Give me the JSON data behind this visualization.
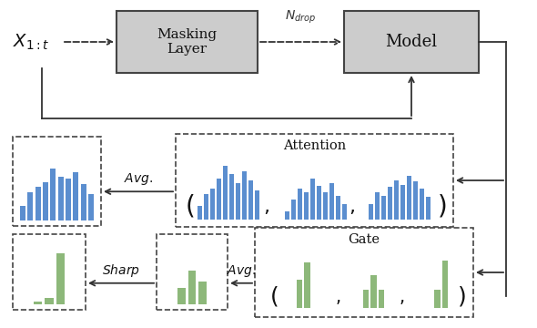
{
  "fig_width": 5.9,
  "fig_height": 3.6,
  "dpi": 100,
  "bg_color": "#ffffff",
  "box_fc": "#cccccc",
  "box_ec": "#444444",
  "blue_bar_color": "#5b8ecf",
  "green_bar_color": "#8db87a",
  "attention_bars_1": [
    0.25,
    0.45,
    0.55,
    0.72,
    0.95,
    0.8,
    0.65,
    0.85,
    0.7,
    0.52
  ],
  "attention_bars_2": [
    0.15,
    0.35,
    0.55,
    0.48,
    0.72,
    0.6,
    0.48,
    0.65,
    0.42,
    0.28
  ],
  "attention_bars_3": [
    0.28,
    0.48,
    0.42,
    0.58,
    0.7,
    0.62,
    0.78,
    0.68,
    0.55,
    0.4
  ],
  "avg_attention_bars": [
    0.22,
    0.43,
    0.51,
    0.59,
    0.79,
    0.67,
    0.64,
    0.73,
    0.56,
    0.4
  ],
  "gate_bars_1": [
    0.0,
    0.55,
    0.9,
    0.0,
    0.0
  ],
  "gate_bars_2": [
    0.0,
    0.35,
    0.65,
    0.35,
    0.0
  ],
  "gate_bars_3": [
    0.0,
    0.0,
    0.35,
    0.92,
    0.0
  ],
  "avg_gate_bars": [
    0.0,
    0.3,
    0.63,
    0.42,
    0.0
  ],
  "sharp_gate_bars": [
    0.0,
    0.05,
    0.12,
    0.95,
    0.0
  ]
}
